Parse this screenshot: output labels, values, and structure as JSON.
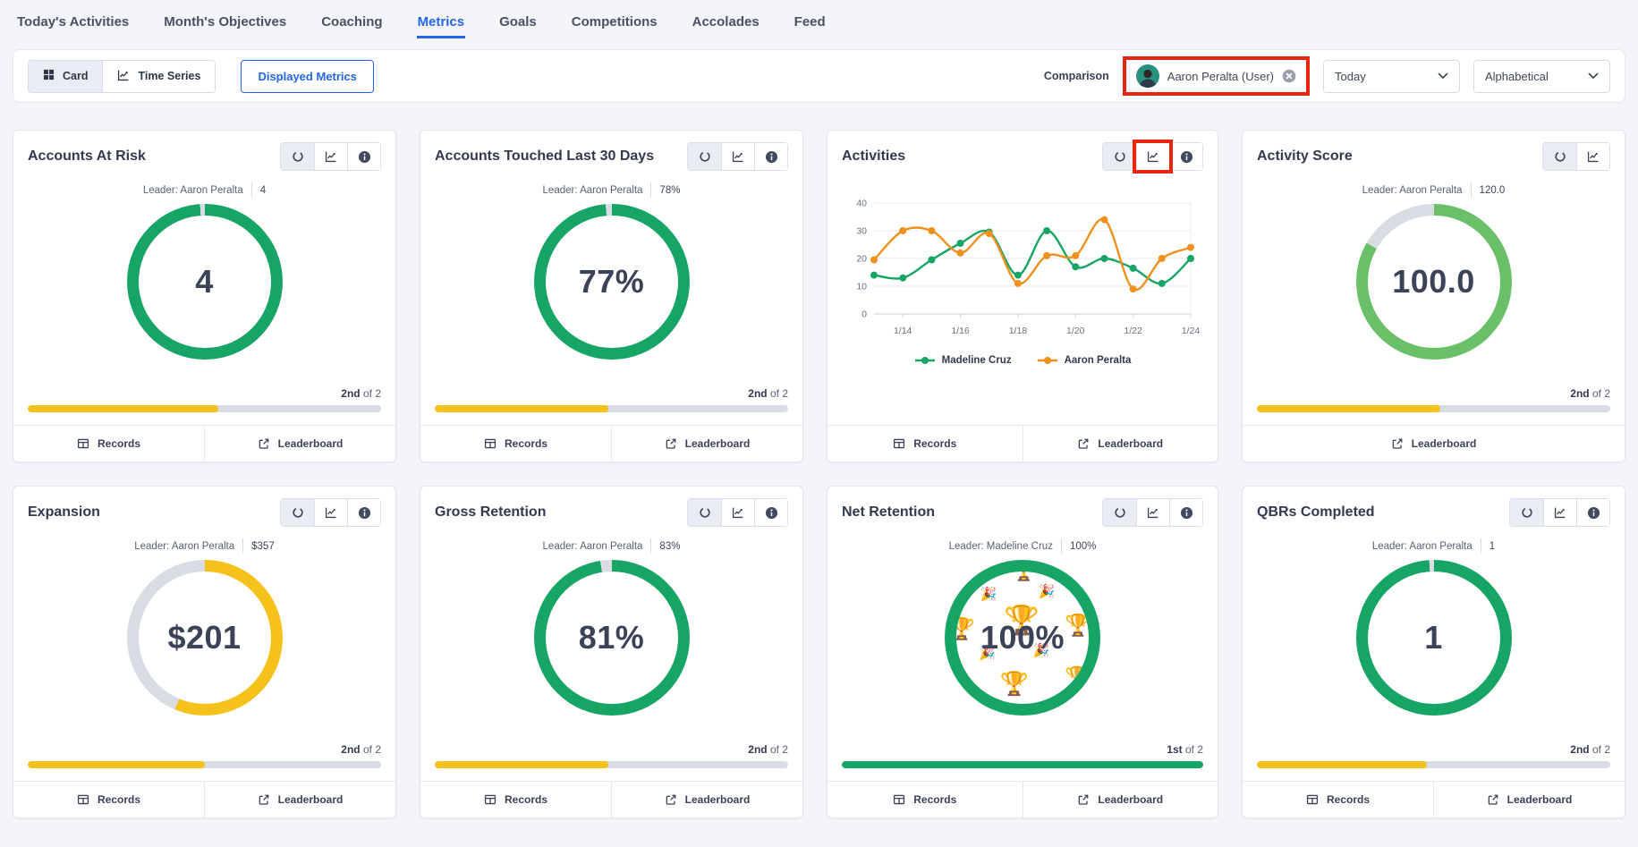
{
  "nav": {
    "tabs": [
      {
        "label": "Today's Activities",
        "active": false
      },
      {
        "label": "Month's Objectives",
        "active": false
      },
      {
        "label": "Coaching",
        "active": false
      },
      {
        "label": "Metrics",
        "active": true
      },
      {
        "label": "Goals",
        "active": false
      },
      {
        "label": "Competitions",
        "active": false
      },
      {
        "label": "Accolades",
        "active": false
      },
      {
        "label": "Feed",
        "active": false
      }
    ]
  },
  "toolbar": {
    "card_label": "Card",
    "time_series_label": "Time Series",
    "displayed_metrics_label": "Displayed Metrics",
    "comparison_label": "Comparison",
    "comparison_value": "Aaron Peralta (User)",
    "period_value": "Today",
    "sort_value": "Alphabetical"
  },
  "footer_labels": {
    "records": "Records",
    "leaderboard": "Leaderboard"
  },
  "emojis": {
    "trophy": "🏆",
    "party": "🎉"
  },
  "colors": {
    "green": "#17a566",
    "light_green": "#6abf69",
    "yellow": "#f5c21b",
    "orange": "#f0911e",
    "gray_track": "#d8dce3",
    "accent_blue": "#2366e8",
    "highlight_red": "#e9250c"
  },
  "cards": [
    {
      "title": "Accounts At Risk",
      "type": "donut",
      "has_info": true,
      "highlight_chart_icon": false,
      "leader_label": "Leader: Aaron Peralta",
      "leader_value": "4",
      "center_value": "4",
      "rank": "2nd",
      "rank_of": "of 2",
      "ring": {
        "color": "#17a566",
        "pct": 99
      },
      "bar": {
        "color": "#f5c21b",
        "pct": 54
      },
      "footer": [
        "records",
        "leaderboard"
      ],
      "emoji_bg": false
    },
    {
      "title": "Accounts Touched Last 30 Days",
      "type": "donut",
      "has_info": true,
      "highlight_chart_icon": false,
      "leader_label": "Leader: Aaron Peralta",
      "leader_value": "78%",
      "center_value": "77%",
      "rank": "2nd",
      "rank_of": "of 2",
      "ring": {
        "color": "#17a566",
        "pct": 98.7
      },
      "bar": {
        "color": "#f5c21b",
        "pct": 49
      },
      "footer": [
        "records",
        "leaderboard"
      ],
      "emoji_bg": false
    },
    {
      "title": "Activities",
      "type": "line",
      "has_info": true,
      "highlight_chart_icon": true,
      "footer": [
        "records",
        "leaderboard"
      ]
    },
    {
      "title": "Activity Score",
      "type": "donut",
      "has_info": false,
      "highlight_chart_icon": false,
      "leader_label": "Leader: Aaron Peralta",
      "leader_value": "120.0",
      "center_value": "100.0",
      "rank": "2nd",
      "rank_of": "of 2",
      "ring": {
        "color": "#6abf69",
        "pct": 83.3
      },
      "bar": {
        "color": "#f5c21b",
        "pct": 52
      },
      "footer": [
        "leaderboard"
      ],
      "emoji_bg": false
    },
    {
      "title": "Expansion",
      "type": "donut",
      "has_info": true,
      "highlight_chart_icon": false,
      "leader_label": "Leader: Aaron Peralta",
      "leader_value": "$357",
      "center_value": "$201",
      "rank": "2nd",
      "rank_of": "of 2",
      "ring": {
        "color": "#f5c21b",
        "pct": 56.3
      },
      "bar": {
        "color": "#f5c21b",
        "pct": 50
      },
      "footer": [
        "records",
        "leaderboard"
      ],
      "emoji_bg": false
    },
    {
      "title": "Gross Retention",
      "type": "donut",
      "has_info": true,
      "highlight_chart_icon": false,
      "leader_label": "Leader: Aaron Peralta",
      "leader_value": "83%",
      "center_value": "81%",
      "rank": "2nd",
      "rank_of": "of 2",
      "ring": {
        "color": "#17a566",
        "pct": 97.6
      },
      "bar": {
        "color": "#f5c21b",
        "pct": 49
      },
      "footer": [
        "records",
        "leaderboard"
      ],
      "emoji_bg": false
    },
    {
      "title": "Net Retention",
      "type": "donut",
      "has_info": true,
      "highlight_chart_icon": false,
      "leader_label": "Leader: Madeline Cruz",
      "leader_value": "100%",
      "center_value": "100%",
      "rank": "1st",
      "rank_of": "of 2",
      "ring": {
        "color": "#17a566",
        "pct": 100
      },
      "bar": {
        "color": "#17a566",
        "pct": 100
      },
      "footer": [
        "records",
        "leaderboard"
      ],
      "emoji_bg": true
    },
    {
      "title": "QBRs Completed",
      "type": "donut",
      "has_info": true,
      "highlight_chart_icon": false,
      "leader_label": "Leader: Aaron Peralta",
      "leader_value": "1",
      "center_value": "1",
      "rank": "2nd",
      "rank_of": "of 2",
      "ring": {
        "color": "#17a566",
        "pct": 99
      },
      "bar": {
        "color": "#f5c21b",
        "pct": 48
      },
      "footer": [
        "records",
        "leaderboard"
      ],
      "emoji_bg": false
    }
  ],
  "chart_data": {
    "type": "line",
    "title": "Activities",
    "x": [
      "1/13",
      "1/14",
      "1/15",
      "1/16",
      "1/17",
      "1/18",
      "1/19",
      "1/20",
      "1/21",
      "1/22",
      "1/23",
      "1/24"
    ],
    "x_tick_labels": [
      "1/14",
      "1/16",
      "1/18",
      "1/20",
      "1/22",
      "1/24"
    ],
    "series": [
      {
        "name": "Madeline Cruz",
        "color": "#17a566",
        "values": [
          14,
          13,
          19.5,
          25.5,
          29.5,
          14,
          30,
          17,
          20,
          16.5,
          11,
          20
        ]
      },
      {
        "name": "Aaron Peralta",
        "color": "#f0911e",
        "values": [
          19.5,
          30,
          30,
          22,
          29,
          11,
          21,
          21,
          34,
          9,
          20,
          24
        ]
      }
    ],
    "ylim": [
      0,
      40
    ],
    "yticks": [
      0,
      10,
      20,
      30,
      40
    ],
    "grid": true,
    "legend_position": "bottom"
  }
}
